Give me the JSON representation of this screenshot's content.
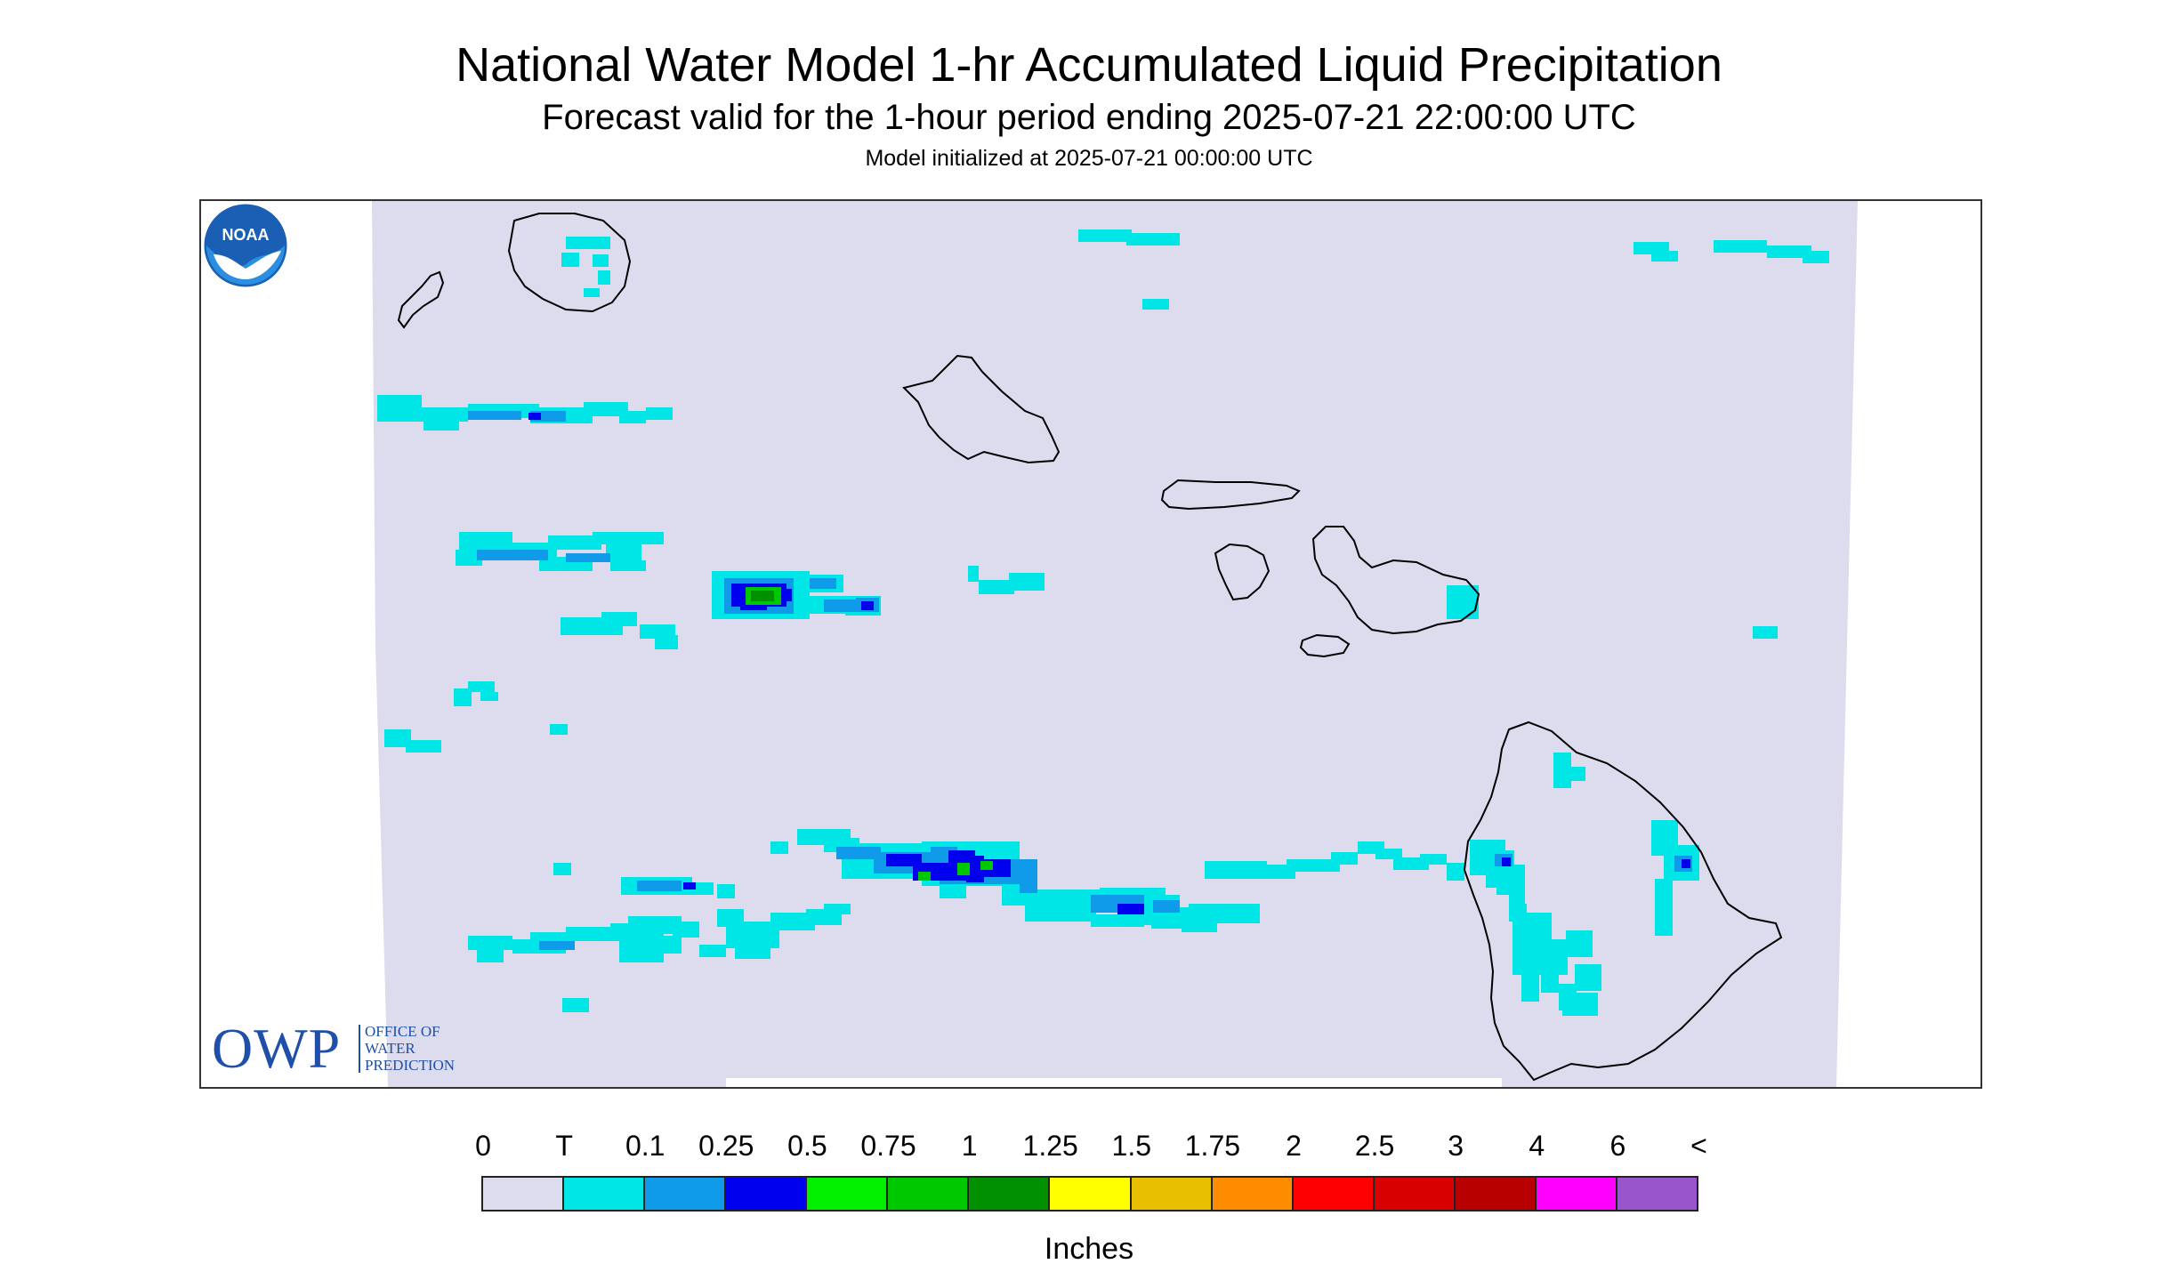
{
  "header": {
    "title": "National Water Model 1-hr Accumulated Liquid Precipitation",
    "subtitle": "Forecast valid for the 1-hour period ending 2025-07-21 22:00:00 UTC",
    "init": "Model initialized at 2025-07-21 00:00:00 UTC"
  },
  "logos": {
    "owp_abbrev": "OWP",
    "owp_line1": "OFFICE OF",
    "owp_line2": "WATER",
    "owp_line3": "PREDICTION",
    "noaa": "NOAA"
  },
  "legend": {
    "labels": [
      "0",
      "T",
      "0.1",
      "0.25",
      "0.5",
      "0.75",
      "1",
      "1.25",
      "1.5",
      "1.75",
      "2",
      "2.5",
      "3",
      "4",
      "6",
      "<"
    ],
    "colors": [
      "#dcdcee",
      "#00e5e5",
      "#0f9aea",
      "#0000ee",
      "#00f000",
      "#00c800",
      "#009000",
      "#ffff00",
      "#e8c000",
      "#ff8c00",
      "#ff0000",
      "#d80000",
      "#b80000",
      "#ff00ff",
      "#9955cc"
    ],
    "units": "Inches"
  },
  "map": {
    "region": "Hawaiian Islands",
    "islands": [
      "Niihau",
      "Kauai",
      "Oahu",
      "Molokai",
      "Lanai",
      "Maui",
      "Kahoolawe",
      "Hawaii"
    ],
    "colors": {
      "background": "#dcdcee",
      "outline": "#000000",
      "trace": "#00e5e5",
      "light": "#0f9aea",
      "blue": "#0000ee",
      "green": "#00c800",
      "dark_green": "#009000"
    }
  }
}
